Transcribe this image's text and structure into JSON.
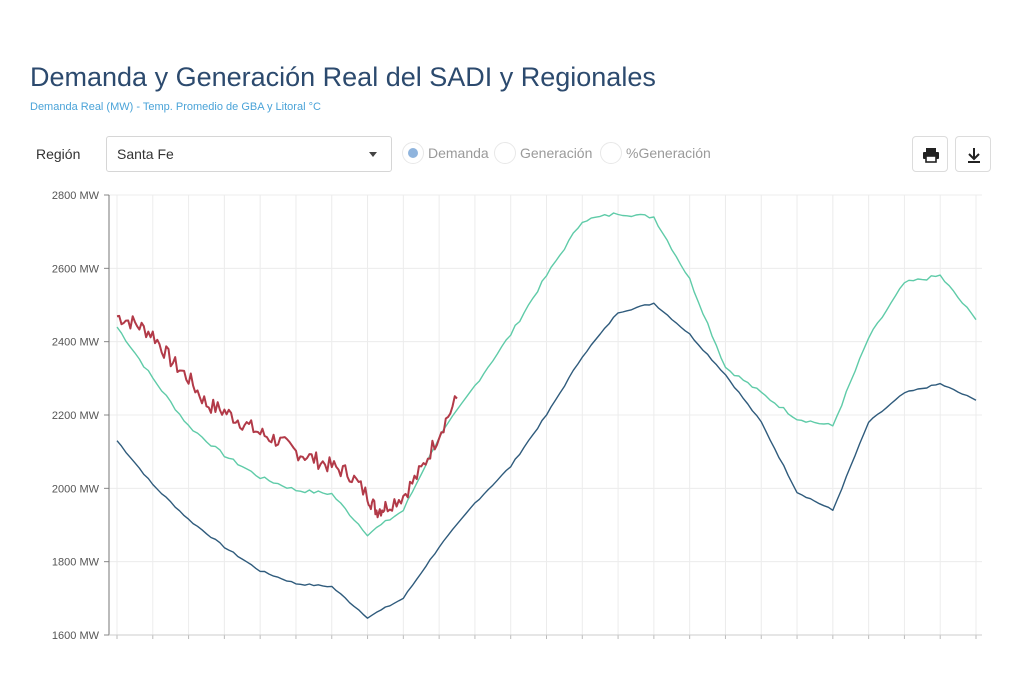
{
  "header": {
    "title": "Demanda y Generación Real del SADI y Regionales",
    "subtitle": "Demanda Real (MW) - Temp. Promedio de GBA y Litoral °C"
  },
  "controls": {
    "region_label": "Región",
    "region_value": "Santa Fe",
    "radio_options": [
      {
        "label": "Demanda",
        "selected": true
      },
      {
        "label": "Generación",
        "selected": false
      },
      {
        "label": "%Generación",
        "selected": false
      }
    ],
    "print_icon": "print-icon",
    "download_icon": "download-icon"
  },
  "chart_data": {
    "type": "line",
    "ylim": [
      1600,
      2800
    ],
    "yticks": [
      1600,
      1800,
      2000,
      2200,
      2400,
      2600,
      2800
    ],
    "ytick_labels": [
      "1600 MW",
      "1800 MW",
      "2000 MW",
      "2200 MW",
      "2400 MW",
      "2600 MW",
      "2800 MW"
    ],
    "x_count": 24,
    "grid": true,
    "series": [
      {
        "id": "demand-prev",
        "color": "#2f5b7c",
        "x": [
          0,
          1,
          2,
          3,
          4,
          5,
          6,
          7,
          8,
          9,
          10,
          11,
          12,
          13,
          14,
          15,
          16,
          17,
          18,
          19,
          20,
          21,
          22,
          23,
          24
        ],
        "y": [
          2130,
          2010,
          1915,
          1840,
          1775,
          1740,
          1732,
          1648,
          1700,
          1840,
          1960,
          2060,
          2200,
          2360,
          2480,
          2505,
          2420,
          2310,
          2180,
          1990,
          1940,
          2180,
          2260,
          2285,
          2240
        ]
      },
      {
        "id": "demand-forecast",
        "color": "#5fcba8",
        "x": [
          0,
          1,
          2,
          3,
          4,
          5,
          6,
          7,
          8,
          9,
          10,
          11,
          12,
          13,
          14,
          15,
          16,
          17,
          18,
          19,
          20,
          21,
          22,
          23,
          24
        ],
        "y": [
          2440,
          2300,
          2170,
          2090,
          2030,
          1995,
          1985,
          1875,
          1940,
          2140,
          2280,
          2420,
          2580,
          2730,
          2750,
          2740,
          2570,
          2330,
          2260,
          2190,
          2170,
          2410,
          2560,
          2580,
          2460
        ]
      },
      {
        "id": "demand-today",
        "color": "#b23a48",
        "x": [
          0,
          0.5,
          1,
          1.5,
          2,
          2.5,
          3,
          3.5,
          4,
          4.5,
          5,
          5.5,
          6,
          6.5,
          7,
          7.25,
          7.5,
          8,
          8.5,
          9,
          9.5
        ],
        "y": [
          2470,
          2450,
          2420,
          2350,
          2300,
          2230,
          2210,
          2180,
          2150,
          2130,
          2100,
          2080,
          2060,
          2040,
          1980,
          1940,
          1950,
          1980,
          2050,
          2150,
          2245
        ]
      }
    ]
  }
}
